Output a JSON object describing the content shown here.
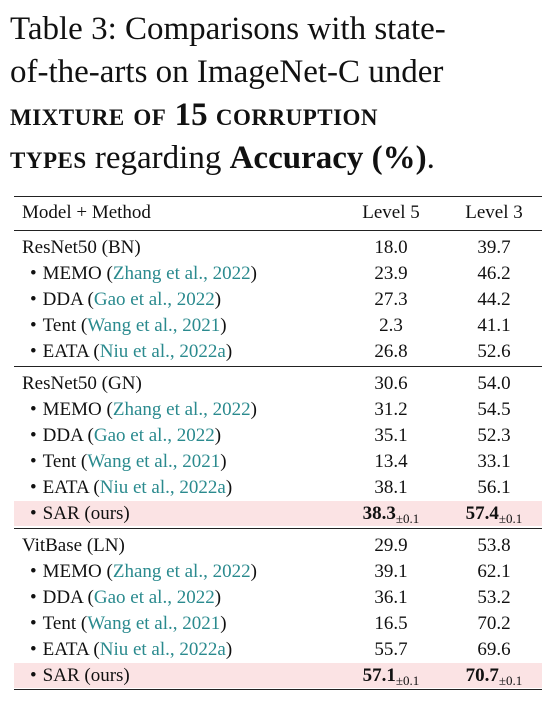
{
  "caption": {
    "line1": "Table 3: Comparisons with state-",
    "line2": "of-the-arts on ImageNet-C under",
    "line3_sc1": "mixture of",
    "line3_num": "15",
    "line3_sc2": "corruption",
    "line4_sc": "types",
    "line4_mid": "regarding",
    "line4_bold": "Accuracy (%)",
    "line4_end": "."
  },
  "header": {
    "method": "Model + Method",
    "level5": "Level 5",
    "level3": "Level 3"
  },
  "groups": [
    {
      "rows": [
        {
          "name": "ResNet50 (BN)",
          "cite": "",
          "l5": "18.0",
          "l3": "39.7"
        },
        {
          "bullet": "•",
          "name": "MEMO",
          "cite": "Zhang et al., 2022",
          "l5": "23.9",
          "l3": "46.2"
        },
        {
          "bullet": "•",
          "name": "DDA",
          "cite": "Gao et al., 2022",
          "l5": "27.3",
          "l3": "44.2"
        },
        {
          "bullet": "•",
          "name": "Tent",
          "cite": "Wang et al., 2021",
          "l5": "2.3",
          "l3": "41.1"
        },
        {
          "bullet": "•",
          "name": "EATA",
          "cite": "Niu et al., 2022a",
          "l5": "26.8",
          "l3": "52.6"
        }
      ]
    },
    {
      "rows": [
        {
          "name": "ResNet50 (GN)",
          "cite": "",
          "l5": "30.6",
          "l3": "54.0"
        },
        {
          "bullet": "•",
          "name": "MEMO",
          "cite": "Zhang et al., 2022",
          "l5": "31.2",
          "l3": "54.5"
        },
        {
          "bullet": "•",
          "name": "DDA",
          "cite": "Gao et al., 2022",
          "l5": "35.1",
          "l3": "52.3"
        },
        {
          "bullet": "•",
          "name": "Tent",
          "cite": "Wang et al., 2021",
          "l5": "13.4",
          "l3": "33.1"
        },
        {
          "bullet": "•",
          "name": "EATA",
          "cite": "Niu et al., 2022a",
          "l5": "38.1",
          "l3": "56.1"
        },
        {
          "bullet": "•",
          "name": "SAR (ours)",
          "cite": "",
          "l5": "38.3",
          "l5_std": "±0.1",
          "l3": "57.4",
          "l3_std": "±0.1"
        }
      ]
    },
    {
      "rows": [
        {
          "name": "VitBase (LN)",
          "cite": "",
          "l5": "29.9",
          "l3": "53.8"
        },
        {
          "bullet": "•",
          "name": "MEMO",
          "cite": "Zhang et al., 2022",
          "l5": "39.1",
          "l3": "62.1"
        },
        {
          "bullet": "•",
          "name": "DDA",
          "cite": "Gao et al., 2022",
          "l5": "36.1",
          "l3": "53.2"
        },
        {
          "bullet": "•",
          "name": "Tent",
          "cite": "Wang et al., 2021",
          "l5": "16.5",
          "l3": "70.2"
        },
        {
          "bullet": "•",
          "name": "EATA",
          "cite": "Niu et al., 2022a",
          "l5": "55.7",
          "l3": "69.6"
        },
        {
          "bullet": "•",
          "name": "SAR (ours)",
          "cite": "",
          "l5": "57.1",
          "l5_std": "±0.1",
          "l3": "70.7",
          "l3_std": "±0.1"
        }
      ]
    }
  ],
  "colors": {
    "citation": "#2a8a8e",
    "highlight": "#fbe3e4"
  }
}
